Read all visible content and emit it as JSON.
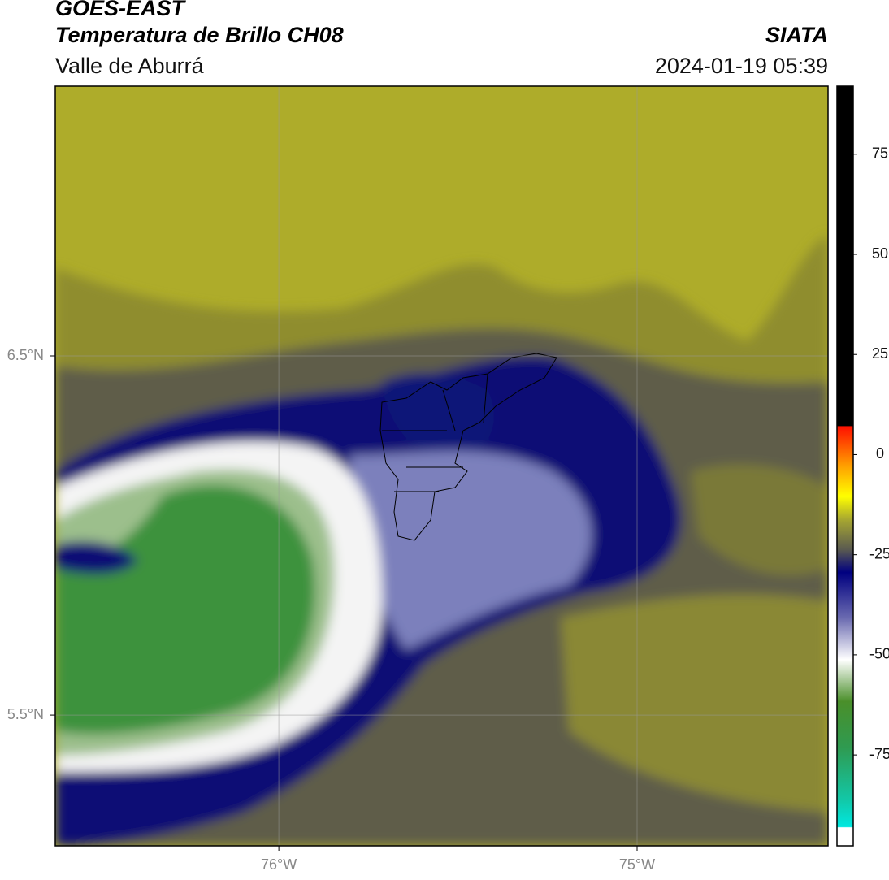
{
  "header": {
    "title": "GOES-EAST",
    "subtitle": "Temperatura de Brillo CH08",
    "source": "SIATA",
    "region": "Valle de Aburrá",
    "datetime": "2024-01-19 05:39"
  },
  "map": {
    "lon_range": [
      -76.624,
      -74.467
    ],
    "lat_range": [
      5.136,
      7.251
    ],
    "xticks": [
      {
        "value": -76,
        "label": "76°W"
      },
      {
        "value": -75,
        "label": "75°W"
      }
    ],
    "yticks": [
      {
        "value": 6.5,
        "label": "6.5°N"
      },
      {
        "value": 5.5,
        "label": "5.5°N"
      }
    ]
  },
  "colorbar": {
    "lim": [
      -97.7,
      92
    ],
    "ticks": [
      -75,
      -50,
      -25,
      0,
      25,
      50,
      75
    ]
  }
}
